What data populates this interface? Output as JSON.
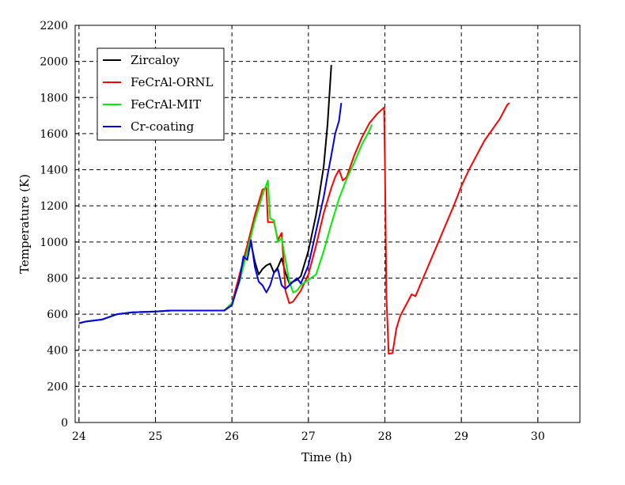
{
  "chart_data": {
    "type": "line",
    "title": "",
    "xlabel": "Time (h)",
    "ylabel": "Temperature (K)",
    "xlim": [
      23.95,
      30.55
    ],
    "ylim": [
      0,
      2200
    ],
    "xticks": [
      24,
      25,
      26,
      27,
      28,
      29,
      30
    ],
    "yticks": [
      0,
      200,
      400,
      600,
      800,
      1000,
      1200,
      1400,
      1600,
      1800,
      2000,
      2200
    ],
    "grid": true,
    "grid_style": "dashed",
    "legend_position": "top-left",
    "series": [
      {
        "name": "Zircaloy",
        "color": "#000000",
        "points": [
          [
            24.0,
            550
          ],
          [
            24.1,
            560
          ],
          [
            24.3,
            570
          ],
          [
            24.5,
            600
          ],
          [
            24.7,
            610
          ],
          [
            25.0,
            615
          ],
          [
            25.2,
            620
          ],
          [
            25.5,
            620
          ],
          [
            25.9,
            620
          ],
          [
            26.0,
            660
          ],
          [
            26.1,
            800
          ],
          [
            26.2,
            950
          ],
          [
            26.25,
            990
          ],
          [
            26.3,
            890
          ],
          [
            26.35,
            820
          ],
          [
            26.4,
            850
          ],
          [
            26.45,
            870
          ],
          [
            26.5,
            880
          ],
          [
            26.55,
            830
          ],
          [
            26.6,
            860
          ],
          [
            26.65,
            910
          ],
          [
            26.7,
            830
          ],
          [
            26.75,
            770
          ],
          [
            26.8,
            780
          ],
          [
            26.85,
            790
          ],
          [
            26.9,
            810
          ],
          [
            27.0,
            950
          ],
          [
            27.1,
            1150
          ],
          [
            27.15,
            1280
          ],
          [
            27.2,
            1420
          ],
          [
            27.25,
            1650
          ],
          [
            27.28,
            1850
          ],
          [
            27.3,
            1980
          ]
        ]
      },
      {
        "name": "FeCrAl-ORNL",
        "color": "#ff0000",
        "points": [
          [
            24.0,
            550
          ],
          [
            24.1,
            560
          ],
          [
            24.3,
            570
          ],
          [
            24.5,
            600
          ],
          [
            24.7,
            610
          ],
          [
            25.0,
            615
          ],
          [
            25.2,
            620
          ],
          [
            25.5,
            620
          ],
          [
            25.9,
            620
          ],
          [
            26.0,
            660
          ],
          [
            26.1,
            820
          ],
          [
            26.2,
            980
          ],
          [
            26.3,
            1150
          ],
          [
            26.4,
            1290
          ],
          [
            26.45,
            1300
          ],
          [
            26.47,
            1110
          ],
          [
            26.55,
            1110
          ],
          [
            26.6,
            1010
          ],
          [
            26.65,
            1050
          ],
          [
            26.7,
            730
          ],
          [
            26.75,
            660
          ],
          [
            26.8,
            670
          ],
          [
            26.85,
            700
          ],
          [
            26.9,
            730
          ],
          [
            27.0,
            820
          ],
          [
            27.1,
            980
          ],
          [
            27.2,
            1160
          ],
          [
            27.3,
            1300
          ],
          [
            27.35,
            1360
          ],
          [
            27.4,
            1400
          ],
          [
            27.45,
            1340
          ],
          [
            27.5,
            1360
          ],
          [
            27.6,
            1480
          ],
          [
            27.7,
            1580
          ],
          [
            27.8,
            1660
          ],
          [
            27.9,
            1710
          ],
          [
            27.99,
            1745
          ],
          [
            28.0,
            1450
          ],
          [
            28.02,
            700
          ],
          [
            28.05,
            380
          ],
          [
            28.1,
            385
          ],
          [
            28.15,
            520
          ],
          [
            28.2,
            590
          ],
          [
            28.3,
            670
          ],
          [
            28.35,
            710
          ],
          [
            28.4,
            700
          ],
          [
            28.5,
            800
          ],
          [
            28.6,
            900
          ],
          [
            28.7,
            1000
          ],
          [
            28.8,
            1100
          ],
          [
            28.9,
            1200
          ],
          [
            29.0,
            1310
          ],
          [
            29.1,
            1400
          ],
          [
            29.2,
            1480
          ],
          [
            29.3,
            1560
          ],
          [
            29.4,
            1620
          ],
          [
            29.5,
            1680
          ],
          [
            29.6,
            1760
          ],
          [
            29.63,
            1770
          ]
        ]
      },
      {
        "name": "FeCrAl-MIT",
        "color": "#00ee00",
        "points": [
          [
            24.0,
            550
          ],
          [
            24.1,
            560
          ],
          [
            24.3,
            570
          ],
          [
            24.5,
            600
          ],
          [
            24.7,
            610
          ],
          [
            25.0,
            615
          ],
          [
            25.2,
            620
          ],
          [
            25.5,
            620
          ],
          [
            25.9,
            620
          ],
          [
            26.0,
            660
          ],
          [
            26.1,
            780
          ],
          [
            26.2,
            950
          ],
          [
            26.3,
            1120
          ],
          [
            26.4,
            1260
          ],
          [
            26.47,
            1340
          ],
          [
            26.5,
            1130
          ],
          [
            26.55,
            1120
          ],
          [
            26.6,
            1000
          ],
          [
            26.65,
            1020
          ],
          [
            26.7,
            900
          ],
          [
            26.75,
            780
          ],
          [
            26.8,
            720
          ],
          [
            26.85,
            730
          ],
          [
            26.9,
            760
          ],
          [
            27.0,
            790
          ],
          [
            27.1,
            820
          ],
          [
            27.2,
            950
          ],
          [
            27.3,
            1100
          ],
          [
            27.4,
            1240
          ],
          [
            27.5,
            1350
          ],
          [
            27.6,
            1440
          ],
          [
            27.7,
            1540
          ],
          [
            27.8,
            1620
          ],
          [
            27.83,
            1650
          ]
        ]
      },
      {
        "name": "Cr-coating",
        "color": "#0000ee",
        "points": [
          [
            24.0,
            550
          ],
          [
            24.1,
            560
          ],
          [
            24.3,
            570
          ],
          [
            24.5,
            600
          ],
          [
            24.7,
            610
          ],
          [
            25.0,
            615
          ],
          [
            25.2,
            620
          ],
          [
            25.5,
            620
          ],
          [
            25.9,
            620
          ],
          [
            26.0,
            650
          ],
          [
            26.1,
            790
          ],
          [
            26.15,
            920
          ],
          [
            26.2,
            900
          ],
          [
            26.25,
            1010
          ],
          [
            26.3,
            860
          ],
          [
            26.35,
            780
          ],
          [
            26.4,
            760
          ],
          [
            26.45,
            720
          ],
          [
            26.5,
            760
          ],
          [
            26.55,
            830
          ],
          [
            26.6,
            850
          ],
          [
            26.65,
            760
          ],
          [
            26.7,
            740
          ],
          [
            26.75,
            760
          ],
          [
            26.8,
            780
          ],
          [
            26.85,
            800
          ],
          [
            26.9,
            770
          ],
          [
            27.0,
            870
          ],
          [
            27.1,
            1060
          ],
          [
            27.2,
            1250
          ],
          [
            27.25,
            1370
          ],
          [
            27.3,
            1480
          ],
          [
            27.35,
            1600
          ],
          [
            27.4,
            1670
          ],
          [
            27.43,
            1770
          ]
        ]
      }
    ]
  }
}
